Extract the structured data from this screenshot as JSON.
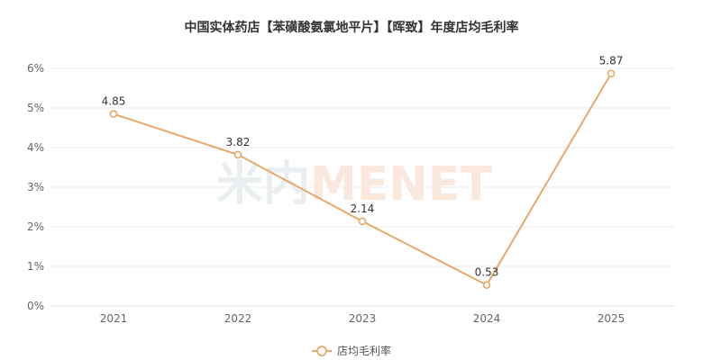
{
  "chart_data": {
    "type": "line",
    "title": "中国实体药店【苯磺酸氨氯地平片】【晖致】年度店均毛利率",
    "categories": [
      "2021",
      "2022",
      "2023",
      "2024",
      "2025"
    ],
    "series": [
      {
        "name": "店均毛利率",
        "values": [
          4.85,
          3.82,
          2.14,
          0.53,
          5.87
        ],
        "color": "#E8A96A"
      }
    ],
    "ylim": [
      0,
      6
    ],
    "yticks": [
      "0%",
      "1%",
      "2%",
      "3%",
      "4%",
      "5%",
      "6%"
    ],
    "grid": true,
    "legend_position": "bottom-center",
    "watermark": "米内MENET"
  }
}
